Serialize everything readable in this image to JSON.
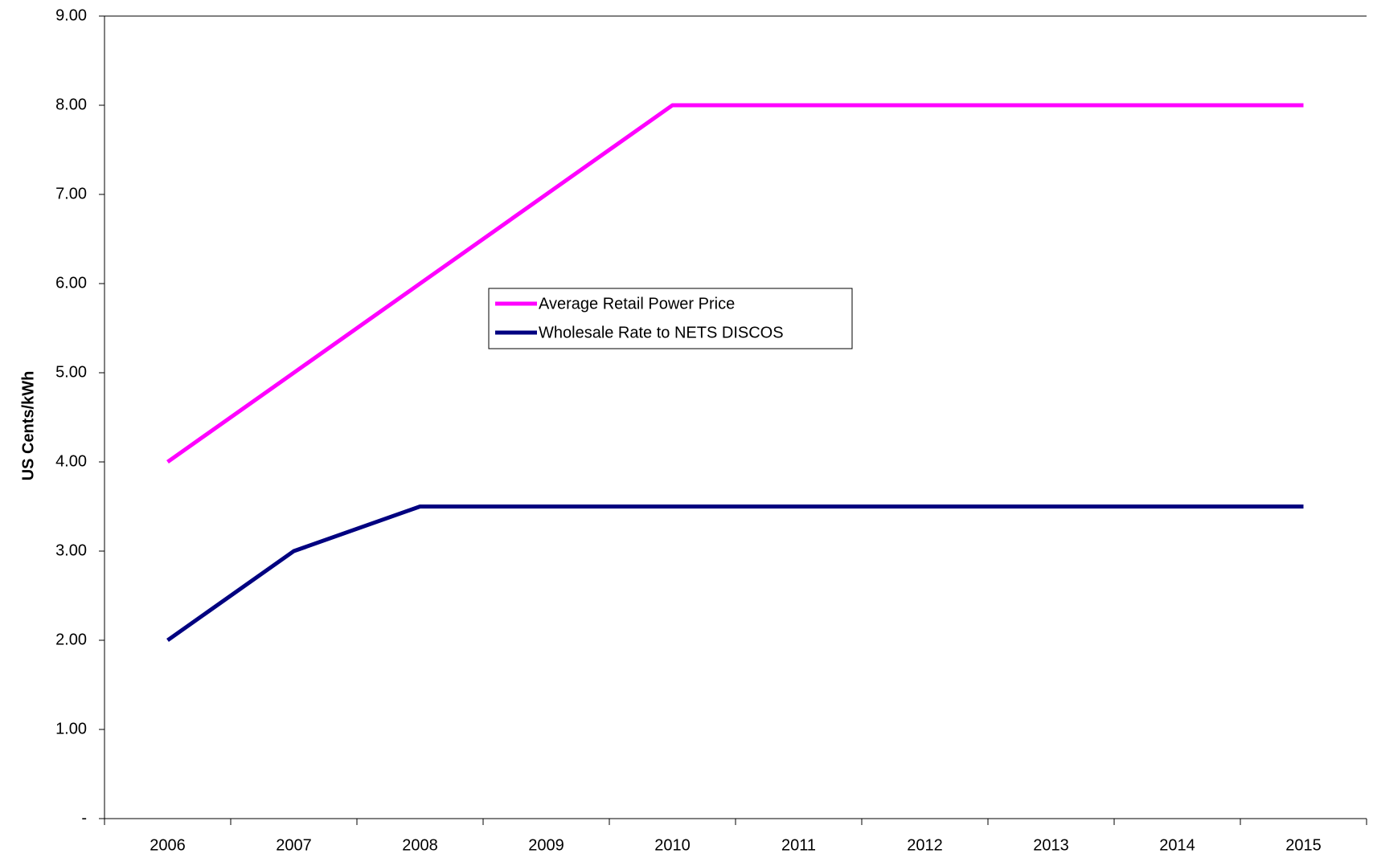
{
  "chart_data": {
    "type": "line",
    "y_label": "US Cents/kWh",
    "categories": [
      "2006",
      "2007",
      "2008",
      "2009",
      "2010",
      "2011",
      "2012",
      "2013",
      "2014",
      "2015"
    ],
    "series": [
      {
        "name": "Average Retail Power Price",
        "color": "#ff00ff",
        "values": [
          4,
          5,
          6,
          7,
          8,
          8,
          8,
          8,
          8,
          8
        ]
      },
      {
        "name": "Wholesale Rate to NETS DISCOS",
        "color": "#000080",
        "values": [
          2,
          3,
          3.5,
          3.5,
          3.5,
          3.5,
          3.5,
          3.5,
          3.5,
          3.5
        ]
      }
    ],
    "ylim": [
      0,
      9
    ],
    "yticks": [
      {
        "value": 0,
        "label": "-"
      },
      {
        "value": 1,
        "label": "1.00"
      },
      {
        "value": 2,
        "label": "2.00"
      },
      {
        "value": 3,
        "label": "3.00"
      },
      {
        "value": 4,
        "label": "4.00"
      },
      {
        "value": 5,
        "label": "5.00"
      },
      {
        "value": 6,
        "label": "6.00"
      },
      {
        "value": 7,
        "label": "7.00"
      },
      {
        "value": 8,
        "label": "8.00"
      },
      {
        "value": 9,
        "label": "9.00"
      }
    ],
    "grid": false
  }
}
